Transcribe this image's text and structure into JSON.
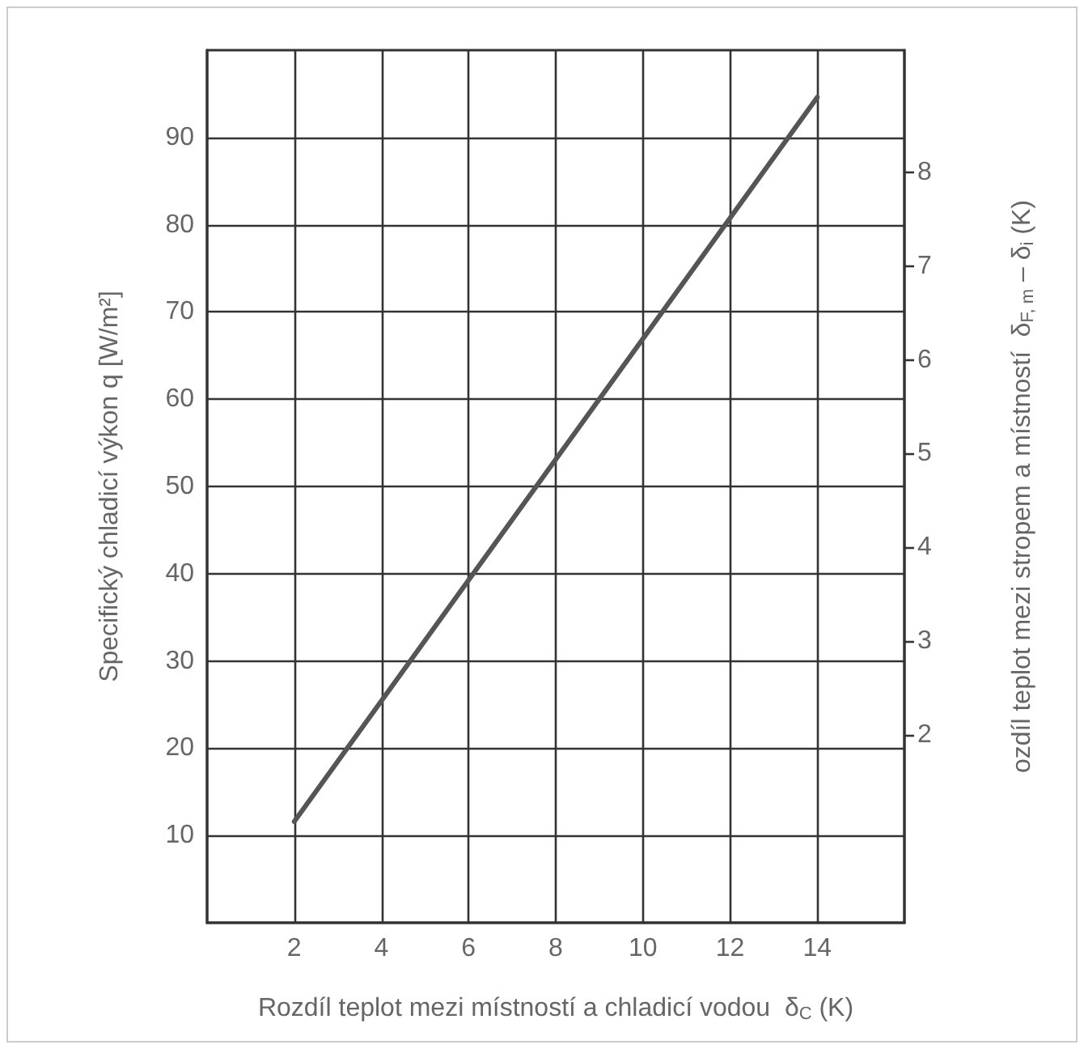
{
  "chart_data": {
    "type": "line",
    "xlabel": "Rozdíl teplot mezi místností a chladicí vodou  δ$_{C}$ (K)",
    "ylabel": "Specifický chladicí výkon q [W/m²]",
    "y2label": "ozdíl teplot mezi stropem a místností  δ$_{F, m}$ – δ$_{i}$ (K)",
    "series": [
      {
        "color": "#555555",
        "x": [
          2,
          14
        ],
        "values": [
          11.6,
          94.6
        ]
      }
    ],
    "xlim": [
      0,
      16
    ],
    "xticks": [
      2,
      4,
      6,
      8,
      10,
      12,
      14
    ],
    "ylim": [
      0,
      100
    ],
    "yticks": [
      10,
      20,
      30,
      40,
      50,
      60,
      70,
      80,
      90
    ],
    "y2lim": [
      0,
      9.3
    ],
    "y2ticks": [
      2,
      3,
      4,
      5,
      6,
      7,
      8
    ],
    "grid": true,
    "marker": "none",
    "line_style": "solid"
  }
}
